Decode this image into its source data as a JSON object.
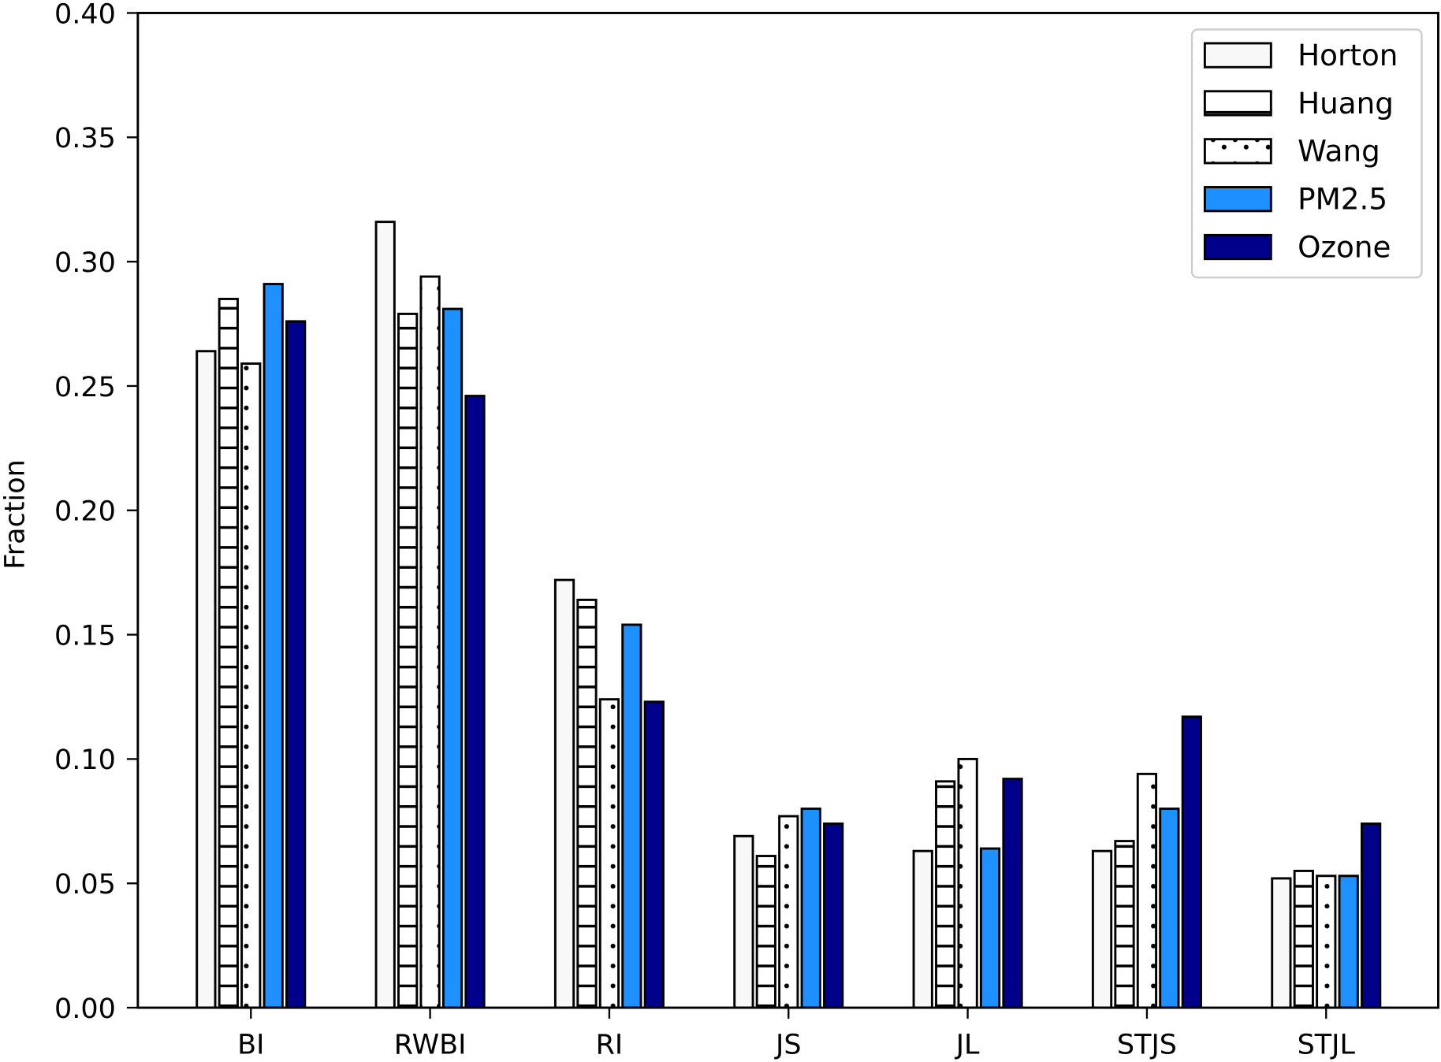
{
  "chart_data": {
    "type": "bar",
    "title": "",
    "xlabel": "",
    "ylabel": "Fraction",
    "ylim": [
      0,
      0.4
    ],
    "yticks": [
      "0.00",
      "0.05",
      "0.10",
      "0.15",
      "0.20",
      "0.25",
      "0.30",
      "0.35",
      "0.40"
    ],
    "categories": [
      "BI",
      "RWBI",
      "RI",
      "JS",
      "JL",
      "STJS",
      "STJL"
    ],
    "legend_position": "top-right",
    "grid": false,
    "series": [
      {
        "name": "Horton",
        "color": "#f8f8f8",
        "pattern": "none",
        "values": [
          0.264,
          0.316,
          0.172,
          0.069,
          0.063,
          0.063,
          0.052
        ]
      },
      {
        "name": "Huang",
        "color": "#ffffff",
        "pattern": "horizontal-hatch",
        "values": [
          0.285,
          0.279,
          0.164,
          0.061,
          0.091,
          0.067,
          0.055
        ]
      },
      {
        "name": "Wang",
        "color": "#ffffff",
        "pattern": "dots",
        "values": [
          0.259,
          0.294,
          0.124,
          0.077,
          0.1,
          0.094,
          0.053
        ]
      },
      {
        "name": "PM2.5",
        "color": "#1e90ff",
        "pattern": "none",
        "values": [
          0.291,
          0.281,
          0.154,
          0.08,
          0.064,
          0.08,
          0.053
        ]
      },
      {
        "name": "Ozone",
        "color": "#00008b",
        "pattern": "none",
        "values": [
          0.276,
          0.246,
          0.123,
          0.074,
          0.092,
          0.117,
          0.074
        ]
      }
    ]
  }
}
